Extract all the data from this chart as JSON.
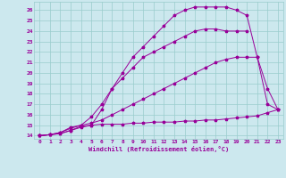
{
  "background_color": "#cce8ee",
  "line_color": "#990099",
  "grid_color": "#99cccc",
  "xlabel": "Windchill (Refroidissement éolien,°C)",
  "xlim": [
    -0.5,
    23.5
  ],
  "ylim": [
    13.7,
    26.8
  ],
  "xticks": [
    0,
    1,
    2,
    3,
    4,
    5,
    6,
    7,
    8,
    9,
    10,
    11,
    12,
    13,
    14,
    15,
    16,
    17,
    18,
    19,
    20,
    21,
    22,
    23
  ],
  "yticks": [
    14,
    15,
    16,
    17,
    18,
    19,
    20,
    21,
    22,
    23,
    24,
    25,
    26
  ],
  "series": [
    {
      "x": [
        0,
        1,
        2,
        3,
        4,
        5,
        6,
        7,
        8,
        9,
        10,
        11,
        12,
        13,
        14,
        15,
        16,
        17,
        18,
        19,
        20
      ],
      "y": [
        14,
        14.1,
        14.3,
        14.8,
        15.0,
        15.8,
        17.0,
        18.5,
        19.5,
        20.5,
        21.5,
        22.0,
        22.5,
        23.0,
        23.5,
        24.0,
        24.2,
        24.2,
        24.0,
        24.0,
        24.0
      ]
    },
    {
      "x": [
        0,
        1,
        2,
        3,
        4,
        5,
        6,
        7,
        8,
        9,
        10,
        11,
        12,
        13,
        14,
        15,
        16,
        17,
        18,
        19,
        20,
        21,
        22,
        23
      ],
      "y": [
        14,
        14.1,
        14.2,
        14.5,
        14.8,
        15.0,
        16.5,
        18.5,
        20.0,
        21.5,
        22.5,
        23.5,
        24.5,
        25.5,
        26.0,
        26.3,
        26.3,
        26.3,
        26.3,
        26.0,
        25.5,
        21.5,
        17.0,
        16.5
      ]
    },
    {
      "x": [
        0,
        1,
        2,
        3,
        4,
        5,
        6,
        7,
        8,
        9,
        10,
        11,
        12,
        13,
        14,
        15,
        16,
        17,
        18,
        19,
        20,
        21,
        22,
        23
      ],
      "y": [
        14,
        14.1,
        14.2,
        14.5,
        14.9,
        15.0,
        15.1,
        15.1,
        15.1,
        15.2,
        15.2,
        15.3,
        15.3,
        15.3,
        15.4,
        15.4,
        15.5,
        15.5,
        15.6,
        15.7,
        15.8,
        15.9,
        16.2,
        16.5
      ]
    },
    {
      "x": [
        0,
        1,
        2,
        3,
        4,
        5,
        6,
        7,
        8,
        9,
        10,
        11,
        12,
        13,
        14,
        15,
        16,
        17,
        18,
        19,
        20,
        21,
        22,
        23
      ],
      "y": [
        14,
        14.1,
        14.3,
        14.7,
        15.0,
        15.2,
        15.5,
        16.0,
        16.5,
        17.0,
        17.5,
        18.0,
        18.5,
        19.0,
        19.5,
        20.0,
        20.5,
        21.0,
        21.3,
        21.5,
        21.5,
        21.5,
        18.5,
        16.5
      ]
    }
  ]
}
